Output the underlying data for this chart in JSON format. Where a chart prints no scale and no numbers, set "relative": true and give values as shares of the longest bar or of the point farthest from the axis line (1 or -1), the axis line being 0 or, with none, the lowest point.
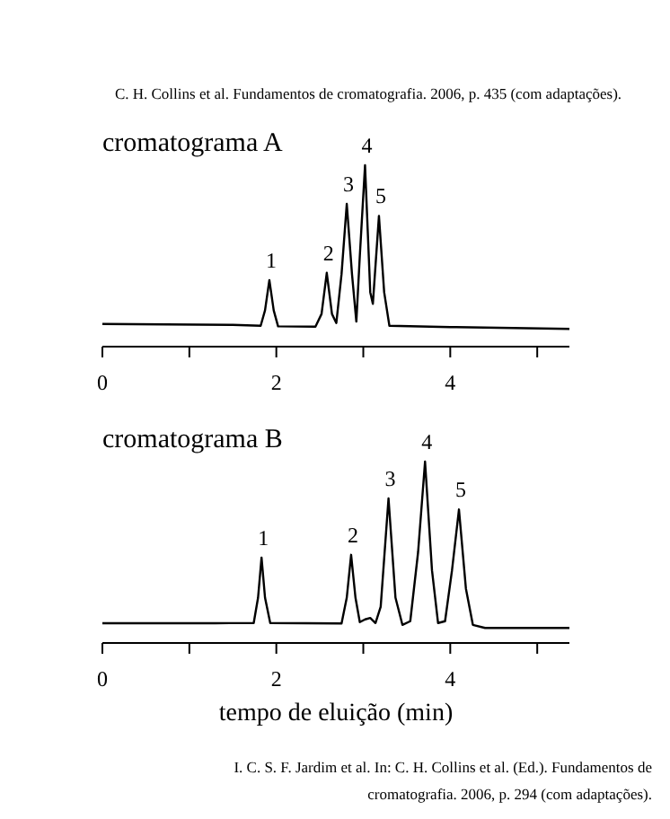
{
  "chart_data": [
    {
      "type": "line",
      "title": "cromatograma A",
      "relative": true,
      "xlim": [
        0,
        5.37
      ],
      "xticks": [
        0,
        {
          "value": 1,
          "label": null
        },
        2,
        {
          "value": 3,
          "label": null
        },
        4,
        {
          "value": 5,
          "label": null
        }
      ],
      "grid": false,
      "series": [
        {
          "color": "#000000",
          "x": [
            0,
            1.5,
            1.82,
            1.87,
            1.92,
            1.97,
            2.02,
            2.45,
            2.52,
            2.58,
            2.64,
            2.69,
            2.75,
            2.81,
            2.87,
            2.92,
            2.96,
            3.02,
            3.08,
            3.11,
            3.18,
            3.24,
            3.3,
            4,
            5.37
          ],
          "values": [
            0.125,
            0.12,
            0.115,
            0.2,
            0.367,
            0.2,
            0.112,
            0.11,
            0.18,
            0.407,
            0.18,
            0.13,
            0.4,
            0.787,
            0.4,
            0.138,
            0.5,
            1.0,
            0.3,
            0.236,
            0.721,
            0.3,
            0.115,
            0.108,
            0.098
          ]
        }
      ],
      "annotations": [
        "C. H. Collins et al. Fundamentos de cromatografia. 2006, p. 435 (com adaptações).",
        {
          "text": "1",
          "x": 1.92,
          "y": 0.367
        },
        {
          "text": "2",
          "x": 2.58,
          "y": 0.407
        },
        {
          "text": "3",
          "x": 2.81,
          "y": 0.787
        },
        {
          "text": "4",
          "x": 3.02,
          "y": 1.0
        },
        {
          "text": "5",
          "x": 3.18,
          "y": 0.721
        }
      ]
    },
    {
      "type": "line",
      "title": "cromatograma B",
      "xlabel": "tempo de eluição (min)",
      "relative": true,
      "xlim": [
        0,
        5.37
      ],
      "xticks": [
        0,
        {
          "value": 1,
          "label": null
        },
        2,
        {
          "value": 3,
          "label": null
        },
        4,
        {
          "value": 5,
          "label": null
        }
      ],
      "grid": false,
      "series": [
        {
          "color": "#000000",
          "x": [
            0,
            1.3,
            1.74,
            1.79,
            1.83,
            1.87,
            1.93,
            2.75,
            2.81,
            2.86,
            2.91,
            2.96,
            3.02,
            3.08,
            3.14,
            3.2,
            3.29,
            3.37,
            3.45,
            3.54,
            3.63,
            3.71,
            3.79,
            3.86,
            3.94,
            4.02,
            4.1,
            4.18,
            4.26,
            4.4,
            5.37
          ],
          "values": [
            0.109,
            0.109,
            0.11,
            0.25,
            0.471,
            0.25,
            0.11,
            0.108,
            0.25,
            0.486,
            0.25,
            0.115,
            0.13,
            0.138,
            0.11,
            0.2,
            0.797,
            0.25,
            0.1,
            0.12,
            0.5,
            1.0,
            0.4,
            0.11,
            0.12,
            0.4,
            0.736,
            0.3,
            0.1,
            0.083,
            0.083
          ]
        }
      ],
      "annotations": [
        {
          "text": "1",
          "x": 1.83,
          "y": 0.471
        },
        {
          "text": "2",
          "x": 2.86,
          "y": 0.486
        },
        {
          "text": "3",
          "x": 3.29,
          "y": 0.797
        },
        {
          "text": "4",
          "x": 3.71,
          "y": 1.0
        },
        {
          "text": "5",
          "x": 4.1,
          "y": 0.736
        },
        "I. C. S. F. Jardim et al. In: C. H. Collins et al. (Ed.). Fundamentos de cromatografia. 2006, p. 294 (com adaptações)."
      ]
    }
  ]
}
